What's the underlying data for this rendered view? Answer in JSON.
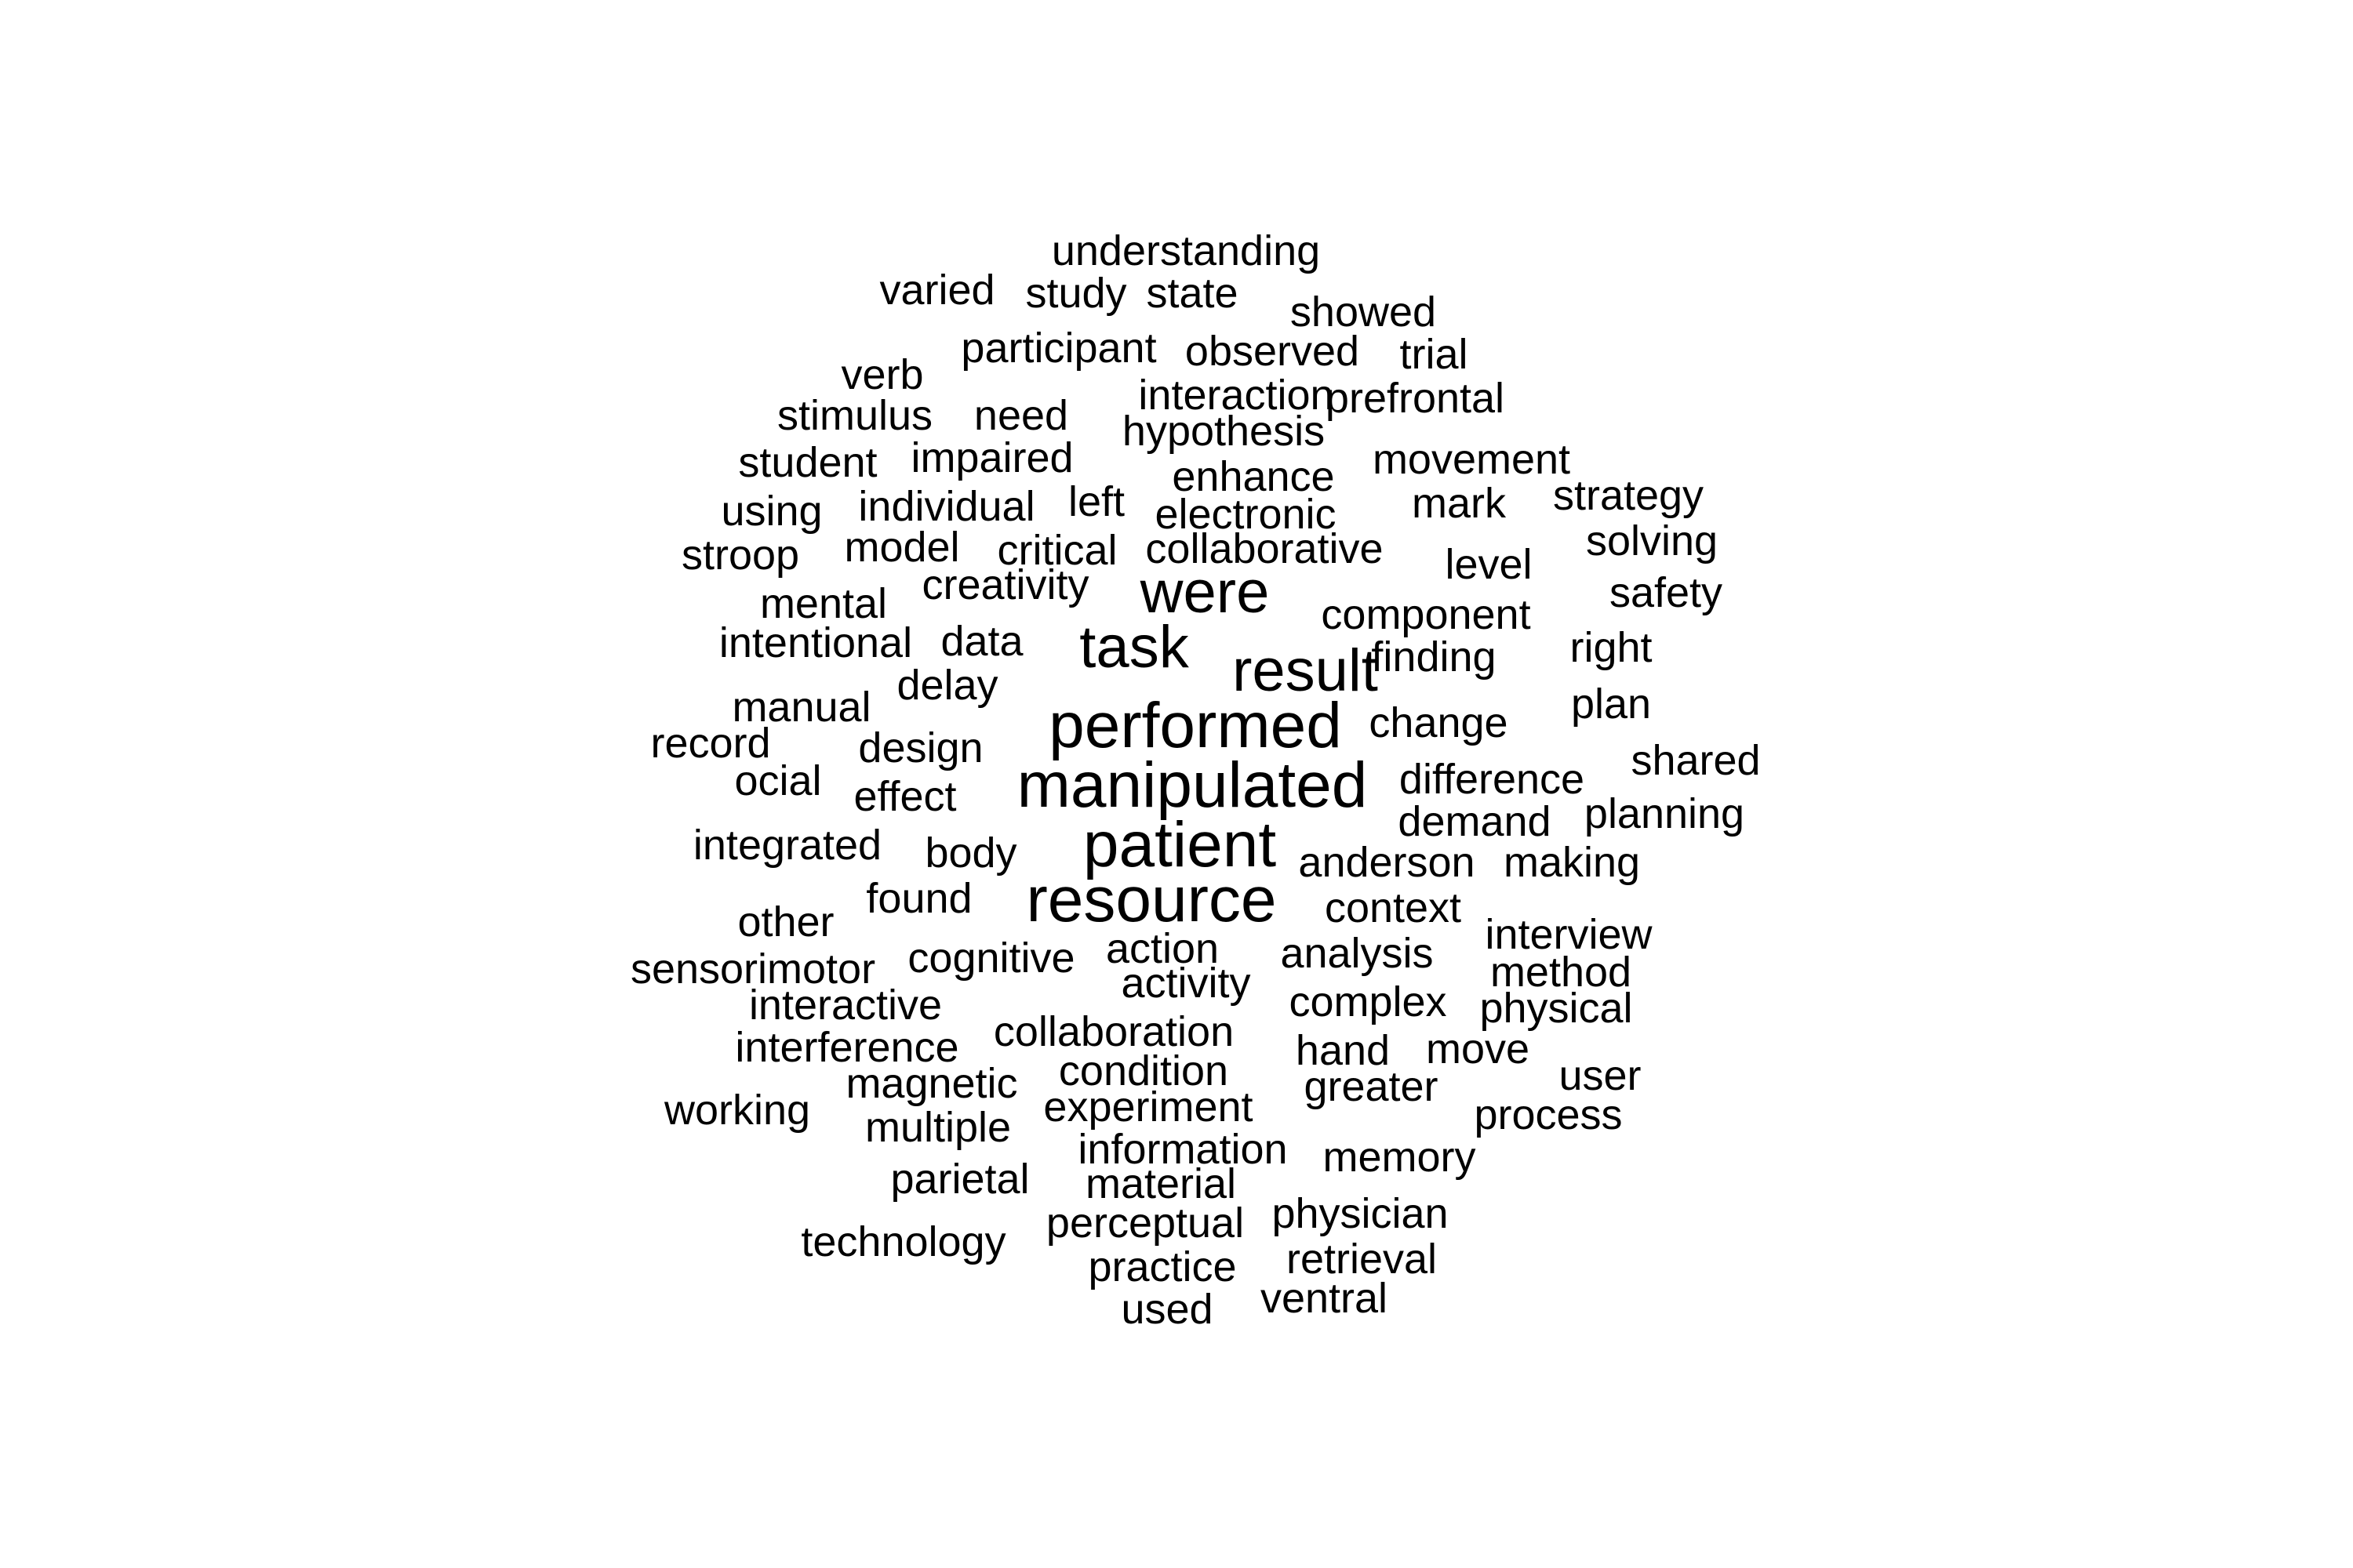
{
  "word_cloud": {
    "text_color": "#000000",
    "background_color": "#ffffff",
    "words": [
      {
        "text": "understanding",
        "weight": 1
      },
      {
        "text": "varied",
        "weight": 1
      },
      {
        "text": "study",
        "weight": 1
      },
      {
        "text": "state",
        "weight": 1
      },
      {
        "text": "showed",
        "weight": 1
      },
      {
        "text": "participant",
        "weight": 1
      },
      {
        "text": "observed",
        "weight": 1
      },
      {
        "text": "trial",
        "weight": 1
      },
      {
        "text": "verb",
        "weight": 1
      },
      {
        "text": "interaction",
        "weight": 1
      },
      {
        "text": "prefrontal",
        "weight": 1
      },
      {
        "text": "stimulus",
        "weight": 1
      },
      {
        "text": "need",
        "weight": 1
      },
      {
        "text": "hypothesis",
        "weight": 1
      },
      {
        "text": "student",
        "weight": 1
      },
      {
        "text": "impaired",
        "weight": 1
      },
      {
        "text": "movement",
        "weight": 1
      },
      {
        "text": "enhance",
        "weight": 1
      },
      {
        "text": "using",
        "weight": 1
      },
      {
        "text": "individual",
        "weight": 1
      },
      {
        "text": "left",
        "weight": 1
      },
      {
        "text": "electronic",
        "weight": 1
      },
      {
        "text": "mark",
        "weight": 1
      },
      {
        "text": "strategy",
        "weight": 1
      },
      {
        "text": "stroop",
        "weight": 1
      },
      {
        "text": "model",
        "weight": 1
      },
      {
        "text": "critical",
        "weight": 1
      },
      {
        "text": "collaborative",
        "weight": 1
      },
      {
        "text": "solving",
        "weight": 1
      },
      {
        "text": "level",
        "weight": 1
      },
      {
        "text": "creativity",
        "weight": 1
      },
      {
        "text": "were",
        "weight": 3
      },
      {
        "text": "safety",
        "weight": 1
      },
      {
        "text": "mental",
        "weight": 1
      },
      {
        "text": "component",
        "weight": 1
      },
      {
        "text": "intentional",
        "weight": 1
      },
      {
        "text": "data",
        "weight": 1
      },
      {
        "text": "task",
        "weight": 3
      },
      {
        "text": "right",
        "weight": 1
      },
      {
        "text": "finding",
        "weight": 1
      },
      {
        "text": "result",
        "weight": 3
      },
      {
        "text": "delay",
        "weight": 1
      },
      {
        "text": "manual",
        "weight": 1
      },
      {
        "text": "plan",
        "weight": 1
      },
      {
        "text": "performed",
        "weight": 4
      },
      {
        "text": "change",
        "weight": 1
      },
      {
        "text": "record",
        "weight": 1
      },
      {
        "text": "design",
        "weight": 1
      },
      {
        "text": "shared",
        "weight": 1
      },
      {
        "text": "ocial",
        "weight": 1
      },
      {
        "text": "manipulated",
        "weight": 4
      },
      {
        "text": "difference",
        "weight": 1
      },
      {
        "text": "effect",
        "weight": 1
      },
      {
        "text": "planning",
        "weight": 1
      },
      {
        "text": "demand",
        "weight": 1
      },
      {
        "text": "integrated",
        "weight": 1
      },
      {
        "text": "patient",
        "weight": 4
      },
      {
        "text": "body",
        "weight": 1
      },
      {
        "text": "anderson",
        "weight": 1
      },
      {
        "text": "making",
        "weight": 1
      },
      {
        "text": "found",
        "weight": 1
      },
      {
        "text": "resource",
        "weight": 4
      },
      {
        "text": "context",
        "weight": 1
      },
      {
        "text": "other",
        "weight": 1
      },
      {
        "text": "interview",
        "weight": 1
      },
      {
        "text": "action",
        "weight": 1
      },
      {
        "text": "sensorimotor",
        "weight": 1
      },
      {
        "text": "cognitive",
        "weight": 1
      },
      {
        "text": "analysis",
        "weight": 1
      },
      {
        "text": "method",
        "weight": 1
      },
      {
        "text": "activity",
        "weight": 1
      },
      {
        "text": "interactive",
        "weight": 1
      },
      {
        "text": "complex",
        "weight": 1
      },
      {
        "text": "physical",
        "weight": 1
      },
      {
        "text": "collaboration",
        "weight": 1
      },
      {
        "text": "interference",
        "weight": 1
      },
      {
        "text": "hand",
        "weight": 1
      },
      {
        "text": "move",
        "weight": 1
      },
      {
        "text": "condition",
        "weight": 1
      },
      {
        "text": "user",
        "weight": 1
      },
      {
        "text": "magnetic",
        "weight": 1
      },
      {
        "text": "greater",
        "weight": 1
      },
      {
        "text": "working",
        "weight": 1
      },
      {
        "text": "experiment",
        "weight": 1
      },
      {
        "text": "process",
        "weight": 1
      },
      {
        "text": "multiple",
        "weight": 1
      },
      {
        "text": "information",
        "weight": 1
      },
      {
        "text": "memory",
        "weight": 1
      },
      {
        "text": "parietal",
        "weight": 1
      },
      {
        "text": "material",
        "weight": 1
      },
      {
        "text": "physician",
        "weight": 1
      },
      {
        "text": "perceptual",
        "weight": 1
      },
      {
        "text": "technology",
        "weight": 1
      },
      {
        "text": "retrieval",
        "weight": 1
      },
      {
        "text": "practice",
        "weight": 1
      },
      {
        "text": "ventral",
        "weight": 1
      },
      {
        "text": "used",
        "weight": 1
      }
    ]
  }
}
